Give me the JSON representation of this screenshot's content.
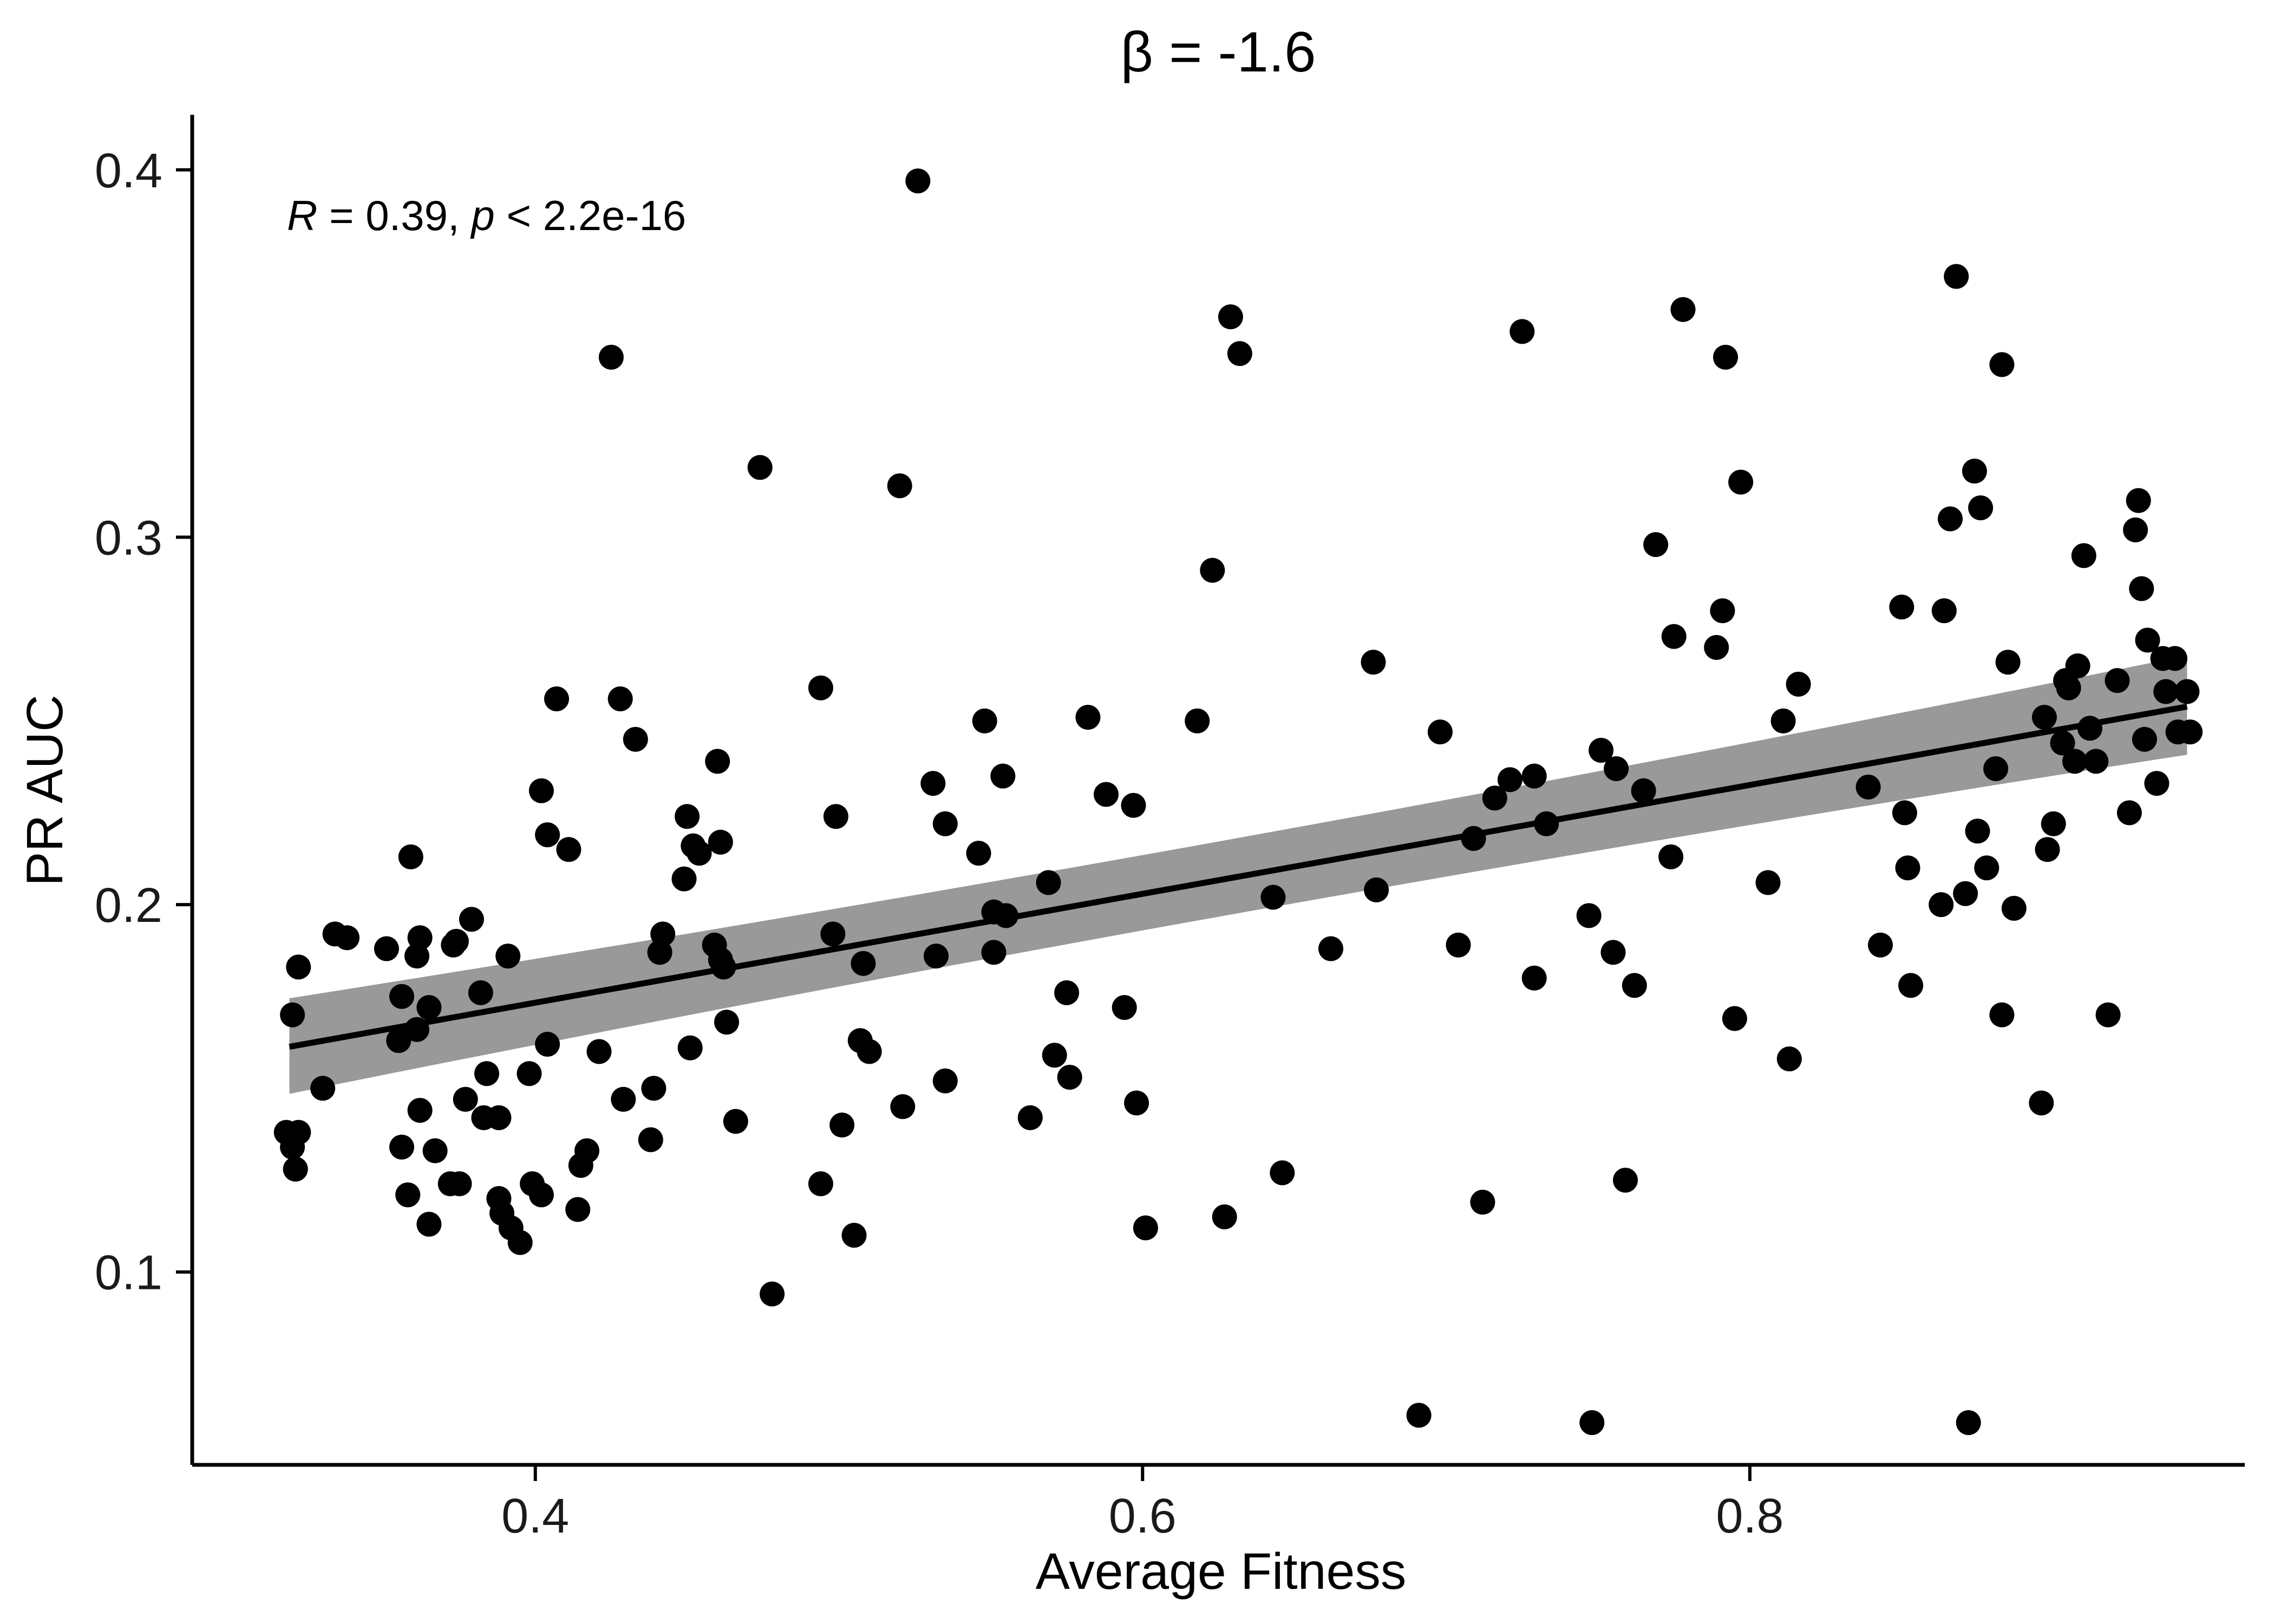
{
  "chart_data": {
    "type": "scatter",
    "title": "β = -1.6",
    "xlabel": "Average Fitness",
    "ylabel": "PR AUC",
    "xlim": [
      0.287,
      0.963
    ],
    "ylim": [
      0.0475,
      0.415
    ],
    "xticks": [
      0.4,
      0.6,
      0.8
    ],
    "xtick_labels": [
      "0.4",
      "0.6",
      "0.8"
    ],
    "yticks": [
      0.1,
      0.2,
      0.3,
      0.4
    ],
    "ytick_labels": [
      "0.1",
      "0.2",
      "0.3",
      "0.4"
    ],
    "grid": false,
    "annotation": {
      "r_symbol": "R",
      "eq": "=",
      "r_value": "0.39,",
      "p_symbol": "p",
      "lt": "<",
      "p_value": "2.2e-16"
    },
    "regression": {
      "x_range": [
        0.319,
        0.944
      ],
      "y_range": [
        0.1613,
        0.2539
      ],
      "ci_low": [
        0.1485,
        0.2408
      ],
      "ci_high": [
        0.1745,
        0.2678
      ]
    },
    "colors": {
      "points": "#000000",
      "line": "#000000",
      "band": "#999999"
    },
    "points": [
      [
        0.318,
        0.138
      ],
      [
        0.32,
        0.134
      ],
      [
        0.32,
        0.17
      ],
      [
        0.321,
        0.128
      ],
      [
        0.322,
        0.138
      ],
      [
        0.322,
        0.183
      ],
      [
        0.33,
        0.15
      ],
      [
        0.334,
        0.192
      ],
      [
        0.338,
        0.191
      ],
      [
        0.351,
        0.188
      ],
      [
        0.355,
        0.163
      ],
      [
        0.356,
        0.175
      ],
      [
        0.356,
        0.134
      ],
      [
        0.358,
        0.121
      ],
      [
        0.359,
        0.213
      ],
      [
        0.361,
        0.186
      ],
      [
        0.361,
        0.166
      ],
      [
        0.362,
        0.144
      ],
      [
        0.362,
        0.191
      ],
      [
        0.365,
        0.172
      ],
      [
        0.365,
        0.113
      ],
      [
        0.367,
        0.133
      ],
      [
        0.372,
        0.124
      ],
      [
        0.373,
        0.189
      ],
      [
        0.374,
        0.19
      ],
      [
        0.375,
        0.124
      ],
      [
        0.377,
        0.147
      ],
      [
        0.379,
        0.196
      ],
      [
        0.382,
        0.176
      ],
      [
        0.383,
        0.142
      ],
      [
        0.384,
        0.154
      ],
      [
        0.388,
        0.142
      ],
      [
        0.388,
        0.12
      ],
      [
        0.389,
        0.116
      ],
      [
        0.391,
        0.186
      ],
      [
        0.392,
        0.112
      ],
      [
        0.395,
        0.108
      ],
      [
        0.398,
        0.154
      ],
      [
        0.399,
        0.124
      ],
      [
        0.402,
        0.231
      ],
      [
        0.402,
        0.121
      ],
      [
        0.404,
        0.219
      ],
      [
        0.404,
        0.162
      ],
      [
        0.407,
        0.256
      ],
      [
        0.411,
        0.215
      ],
      [
        0.414,
        0.117
      ],
      [
        0.415,
        0.129
      ],
      [
        0.417,
        0.133
      ],
      [
        0.421,
        0.16
      ],
      [
        0.425,
        0.349
      ],
      [
        0.428,
        0.256
      ],
      [
        0.429,
        0.147
      ],
      [
        0.433,
        0.245
      ],
      [
        0.438,
        0.136
      ],
      [
        0.439,
        0.15
      ],
      [
        0.441,
        0.187
      ],
      [
        0.442,
        0.192
      ],
      [
        0.449,
        0.207
      ],
      [
        0.45,
        0.224
      ],
      [
        0.451,
        0.161
      ],
      [
        0.452,
        0.216
      ],
      [
        0.454,
        0.214
      ],
      [
        0.459,
        0.189
      ],
      [
        0.46,
        0.239
      ],
      [
        0.461,
        0.217
      ],
      [
        0.461,
        0.185
      ],
      [
        0.462,
        0.183
      ],
      [
        0.463,
        0.168
      ],
      [
        0.466,
        0.141
      ],
      [
        0.474,
        0.319
      ],
      [
        0.478,
        0.094
      ],
      [
        0.494,
        0.259
      ],
      [
        0.494,
        0.124
      ],
      [
        0.498,
        0.192
      ],
      [
        0.499,
        0.224
      ],
      [
        0.501,
        0.14
      ],
      [
        0.505,
        0.11
      ],
      [
        0.507,
        0.163
      ],
      [
        0.508,
        0.184
      ],
      [
        0.51,
        0.16
      ],
      [
        0.52,
        0.314
      ],
      [
        0.521,
        0.145
      ],
      [
        0.526,
        0.397
      ],
      [
        0.531,
        0.233
      ],
      [
        0.532,
        0.186
      ],
      [
        0.535,
        0.222
      ],
      [
        0.535,
        0.152
      ],
      [
        0.546,
        0.214
      ],
      [
        0.548,
        0.25
      ],
      [
        0.551,
        0.198
      ],
      [
        0.551,
        0.187
      ],
      [
        0.554,
        0.235
      ],
      [
        0.555,
        0.197
      ],
      [
        0.563,
        0.142
      ],
      [
        0.569,
        0.206
      ],
      [
        0.571,
        0.159
      ],
      [
        0.575,
        0.176
      ],
      [
        0.576,
        0.153
      ],
      [
        0.582,
        0.251
      ],
      [
        0.588,
        0.23
      ],
      [
        0.594,
        0.172
      ],
      [
        0.597,
        0.227
      ],
      [
        0.598,
        0.146
      ],
      [
        0.601,
        0.112
      ],
      [
        0.618,
        0.25
      ],
      [
        0.623,
        0.291
      ],
      [
        0.627,
        0.115
      ],
      [
        0.629,
        0.36
      ],
      [
        0.632,
        0.35
      ],
      [
        0.643,
        0.202
      ],
      [
        0.646,
        0.127
      ],
      [
        0.662,
        0.188
      ],
      [
        0.676,
        0.266
      ],
      [
        0.677,
        0.204
      ],
      [
        0.691,
        0.061
      ],
      [
        0.698,
        0.247
      ],
      [
        0.704,
        0.189
      ],
      [
        0.709,
        0.218
      ],
      [
        0.712,
        0.119
      ],
      [
        0.716,
        0.229
      ],
      [
        0.721,
        0.234
      ],
      [
        0.725,
        0.356
      ],
      [
        0.729,
        0.18
      ],
      [
        0.729,
        0.235
      ],
      [
        0.733,
        0.222
      ],
      [
        0.747,
        0.197
      ],
      [
        0.748,
        0.059
      ],
      [
        0.751,
        0.242
      ],
      [
        0.755,
        0.187
      ],
      [
        0.756,
        0.237
      ],
      [
        0.759,
        0.125
      ],
      [
        0.762,
        0.178
      ],
      [
        0.765,
        0.231
      ],
      [
        0.769,
        0.298
      ],
      [
        0.774,
        0.213
      ],
      [
        0.775,
        0.273
      ],
      [
        0.778,
        0.362
      ],
      [
        0.789,
        0.27
      ],
      [
        0.791,
        0.28
      ],
      [
        0.792,
        0.349
      ],
      [
        0.795,
        0.169
      ],
      [
        0.797,
        0.315
      ],
      [
        0.806,
        0.206
      ],
      [
        0.811,
        0.25
      ],
      [
        0.813,
        0.158
      ],
      [
        0.816,
        0.26
      ],
      [
        0.839,
        0.232
      ],
      [
        0.843,
        0.189
      ],
      [
        0.85,
        0.281
      ],
      [
        0.851,
        0.225
      ],
      [
        0.852,
        0.21
      ],
      [
        0.853,
        0.178
      ],
      [
        0.863,
        0.2
      ],
      [
        0.864,
        0.28
      ],
      [
        0.866,
        0.305
      ],
      [
        0.868,
        0.371
      ],
      [
        0.871,
        0.203
      ],
      [
        0.872,
        0.059
      ],
      [
        0.874,
        0.318
      ],
      [
        0.875,
        0.22
      ],
      [
        0.876,
        0.308
      ],
      [
        0.878,
        0.21
      ],
      [
        0.881,
        0.237
      ],
      [
        0.883,
        0.347
      ],
      [
        0.883,
        0.17
      ],
      [
        0.885,
        0.266
      ],
      [
        0.887,
        0.199
      ],
      [
        0.896,
        0.146
      ],
      [
        0.897,
        0.251
      ],
      [
        0.898,
        0.215
      ],
      [
        0.9,
        0.222
      ],
      [
        0.903,
        0.244
      ],
      [
        0.904,
        0.261
      ],
      [
        0.905,
        0.259
      ],
      [
        0.907,
        0.239
      ],
      [
        0.908,
        0.265
      ],
      [
        0.91,
        0.295
      ],
      [
        0.912,
        0.248
      ],
      [
        0.914,
        0.239
      ],
      [
        0.918,
        0.17
      ],
      [
        0.921,
        0.261
      ],
      [
        0.925,
        0.225
      ],
      [
        0.927,
        0.302
      ],
      [
        0.928,
        0.31
      ],
      [
        0.929,
        0.286
      ],
      [
        0.93,
        0.245
      ],
      [
        0.931,
        0.272
      ],
      [
        0.934,
        0.233
      ],
      [
        0.936,
        0.267
      ],
      [
        0.937,
        0.258
      ],
      [
        0.94,
        0.267
      ],
      [
        0.941,
        0.247
      ],
      [
        0.944,
        0.258
      ],
      [
        0.945,
        0.247
      ]
    ]
  }
}
